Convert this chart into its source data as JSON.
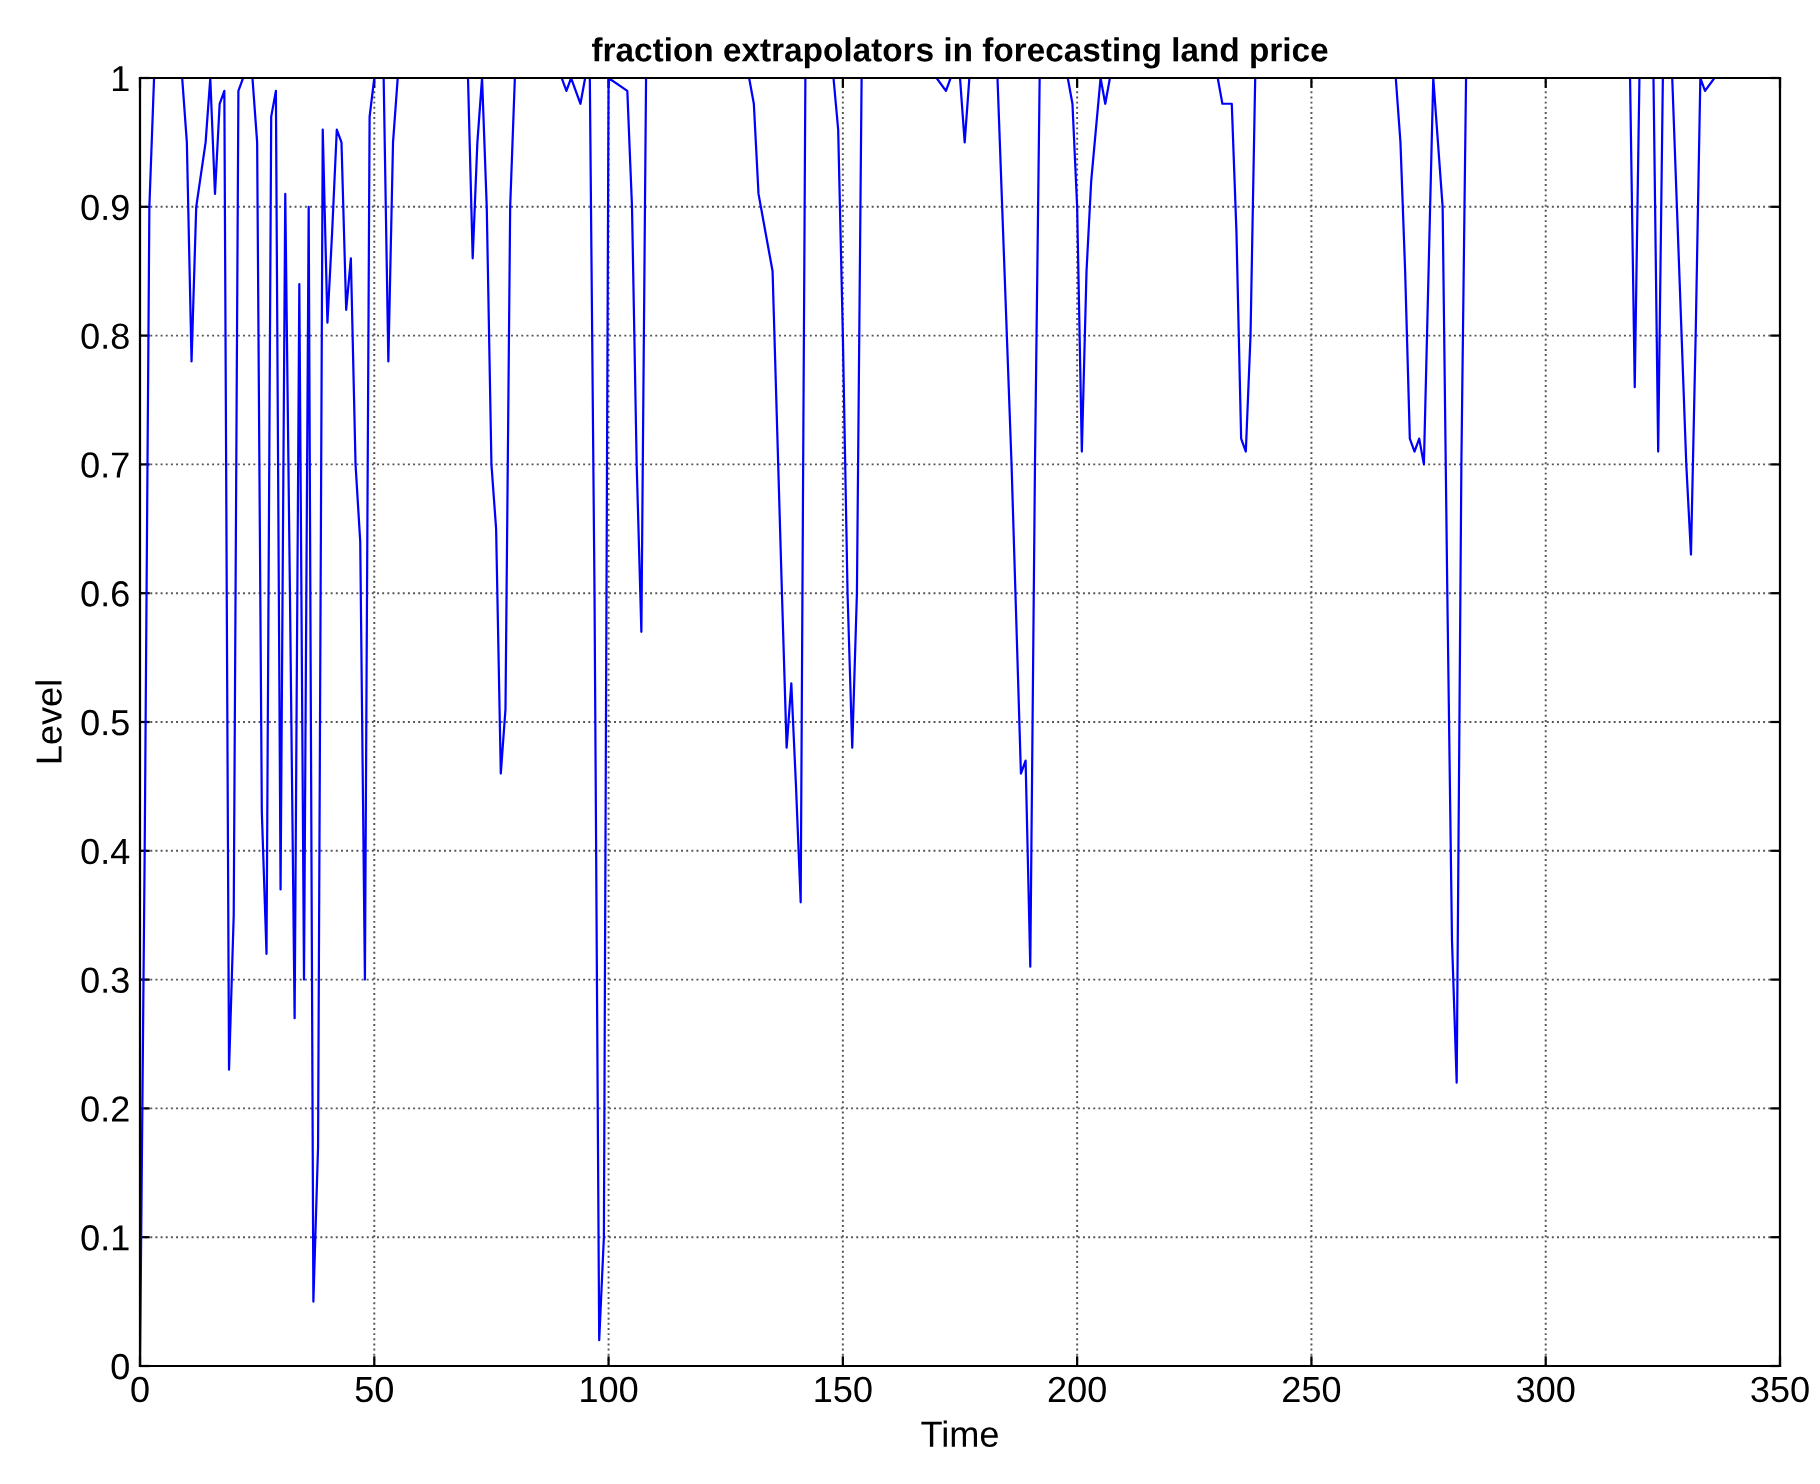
{
  "chart_data": {
    "type": "line",
    "title": "fraction extrapolators in forecasting land price",
    "xlabel": "Time",
    "ylabel": "Level",
    "x": [
      0,
      1,
      2,
      3,
      9,
      10,
      11,
      12,
      14,
      15,
      16,
      17,
      18,
      19,
      20,
      21,
      22,
      24,
      25,
      26,
      27,
      28,
      29,
      30,
      31,
      32,
      33,
      34,
      35,
      36,
      37,
      38,
      39,
      40,
      41,
      42,
      43,
      44,
      45,
      46,
      47,
      48,
      49,
      50,
      52,
      53,
      54,
      55,
      70,
      71,
      72,
      73,
      74,
      75,
      76,
      77,
      78,
      79,
      80,
      90,
      91,
      92,
      94,
      95,
      96,
      97,
      98,
      99,
      100,
      104,
      105,
      106,
      107,
      108,
      130,
      131,
      132,
      133,
      135,
      137,
      138,
      139,
      140,
      141,
      142,
      148,
      149,
      150,
      151,
      152,
      153,
      154,
      170,
      172,
      173,
      175,
      176,
      177,
      183,
      184,
      186,
      188,
      189,
      190,
      191,
      192,
      198,
      199,
      200,
      201,
      202,
      203,
      205,
      206,
      207,
      230,
      231,
      233,
      234,
      235,
      236,
      237,
      238,
      268,
      269,
      270,
      271,
      272,
      273,
      274,
      275,
      276,
      278,
      279,
      280,
      281,
      282,
      283,
      318,
      319,
      320,
      323,
      324,
      325,
      327,
      328,
      330,
      331,
      332,
      333,
      334,
      336,
      337
    ],
    "series": [
      {
        "color": "#0000ff",
        "values": [
          0,
          0.4,
          0.9,
          1,
          1,
          0.95,
          0.78,
          0.9,
          0.95,
          1,
          0.91,
          0.98,
          0.99,
          0.23,
          0.35,
          0.99,
          1,
          1,
          0.95,
          0.43,
          0.32,
          0.97,
          0.99,
          0.37,
          0.91,
          0.6,
          0.27,
          0.84,
          0.3,
          0.9,
          0.05,
          0.17,
          0.96,
          0.81,
          0.88,
          0.96,
          0.95,
          0.82,
          0.86,
          0.7,
          0.64,
          0.3,
          0.97,
          1,
          1,
          0.78,
          0.95,
          1,
          1,
          0.86,
          0.95,
          1,
          0.9,
          0.7,
          0.65,
          0.46,
          0.51,
          0.9,
          1,
          1,
          0.99,
          1,
          0.98,
          1,
          1,
          0.6,
          0.02,
          0.1,
          1,
          0.99,
          0.9,
          0.7,
          0.57,
          1,
          1,
          0.98,
          0.91,
          0.89,
          0.85,
          0.6,
          0.48,
          0.53,
          0.45,
          0.36,
          1,
          1,
          0.96,
          0.8,
          0.6,
          0.48,
          0.6,
          1,
          1,
          0.99,
          1,
          1,
          0.95,
          1,
          1,
          0.9,
          0.7,
          0.46,
          0.47,
          0.31,
          0.7,
          1,
          1,
          0.98,
          0.9,
          0.71,
          0.85,
          0.92,
          1,
          0.98,
          1,
          1,
          0.98,
          0.98,
          0.88,
          0.72,
          0.71,
          0.8,
          1,
          1,
          0.95,
          0.85,
          0.72,
          0.71,
          0.72,
          0.7,
          0.85,
          1,
          0.9,
          0.6,
          0.33,
          0.22,
          0.7,
          1,
          1,
          0.76,
          1,
          1,
          0.71,
          1,
          1,
          0.9,
          0.7,
          0.63,
          0.8,
          1,
          0.99,
          1,
          1
        ]
      }
    ],
    "xlim": [
      0,
      350
    ],
    "xticks": [
      0,
      50,
      100,
      150,
      200,
      250,
      300,
      350
    ],
    "ylim": [
      0,
      1
    ],
    "yticks": [
      0,
      0.1,
      0.2,
      0.3,
      0.4,
      0.5,
      0.6,
      0.7,
      0.8,
      0.9,
      1
    ],
    "grid": true
  }
}
